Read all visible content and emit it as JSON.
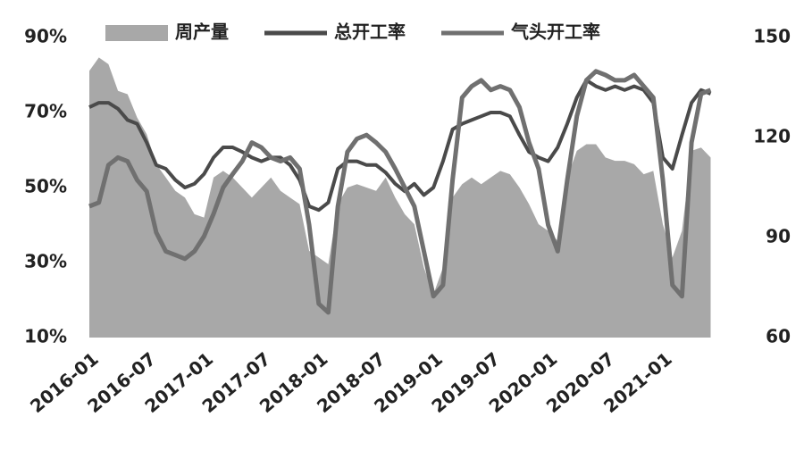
{
  "chart_data": {
    "type": "line",
    "categories": [
      "2016-01",
      null,
      null,
      null,
      null,
      null,
      "2016-07",
      null,
      null,
      null,
      null,
      null,
      "2017-01",
      null,
      null,
      null,
      null,
      null,
      "2017-07",
      null,
      null,
      null,
      null,
      null,
      "2018-01",
      null,
      null,
      null,
      null,
      null,
      "2018-07",
      null,
      null,
      null,
      null,
      null,
      "2019-01",
      null,
      null,
      null,
      null,
      null,
      "2019-07",
      null,
      null,
      null,
      null,
      null,
      "2020-01",
      null,
      null,
      null,
      null,
      null,
      "2020-07",
      null,
      null,
      null,
      null,
      null,
      "2021-01",
      null,
      null,
      null,
      null,
      null
    ],
    "series": [
      {
        "name": "周产量",
        "kind": "area",
        "axis": "y2",
        "color": "#a8a8a8",
        "values": [
          140,
          144,
          142,
          134,
          133,
          126,
          121,
          112,
          108,
          104,
          102,
          97,
          96,
          108,
          110,
          108,
          105,
          102,
          105,
          108,
          104,
          102,
          100,
          86,
          84,
          82,
          100,
          105,
          106,
          105,
          104,
          108,
          102,
          97,
          94,
          81,
          73,
          81,
          102,
          106,
          108,
          106,
          108,
          110,
          109,
          105,
          100,
          94,
          92,
          89,
          108,
          116,
          118,
          118,
          114,
          113,
          113,
          112,
          109,
          110,
          94,
          84,
          92,
          116,
          117,
          114
        ]
      },
      {
        "name": "总开工率",
        "axis": "y",
        "color": "#4a4a4a",
        "values": [
          71.4,
          72.6,
          72.6,
          71,
          68,
          67,
          62,
          56,
          55,
          52,
          50,
          51,
          53.6,
          58,
          60.7,
          60.7,
          59.5,
          58,
          57,
          58,
          58,
          56,
          52,
          45,
          44,
          46,
          55,
          57,
          57,
          56,
          56,
          54,
          51,
          49,
          51,
          48,
          50,
          57,
          65.5,
          67,
          68,
          69,
          70,
          70,
          69,
          64,
          59.5,
          58,
          57,
          60.7,
          67,
          74,
          78.6,
          77,
          76,
          77,
          76,
          77,
          76,
          72.6,
          58,
          55,
          64,
          72.6,
          76,
          75
        ]
      },
      {
        "name": "气头开工率",
        "axis": "y",
        "color": "#707070",
        "values": [
          45,
          46,
          56,
          58,
          57,
          52,
          49,
          38,
          33,
          32,
          31,
          33,
          37,
          43,
          50,
          53.6,
          57,
          62,
          60.7,
          58,
          57,
          58,
          55,
          40,
          19,
          16.7,
          45,
          59.5,
          63,
          64,
          62,
          59.5,
          55,
          50,
          45,
          33,
          21,
          24,
          52,
          74,
          77,
          78.6,
          76,
          77,
          76,
          71.4,
          62,
          55,
          40,
          33,
          52,
          69,
          78.6,
          81,
          80,
          78.6,
          78.6,
          80,
          77,
          74,
          52,
          24,
          21,
          62,
          75,
          76
        ]
      }
    ],
    "ylim": [
      10,
      90
    ],
    "yticks": [
      {
        "value": 10,
        "label": "10%"
      },
      {
        "value": 30,
        "label": "30%"
      },
      {
        "value": 50,
        "label": "50%"
      },
      {
        "value": 70,
        "label": "70%"
      },
      {
        "value": 90,
        "label": "90%"
      }
    ],
    "y2lim": [
      60,
      150
    ],
    "y2ticks": [
      60,
      90,
      120,
      150
    ],
    "legend": "top"
  }
}
